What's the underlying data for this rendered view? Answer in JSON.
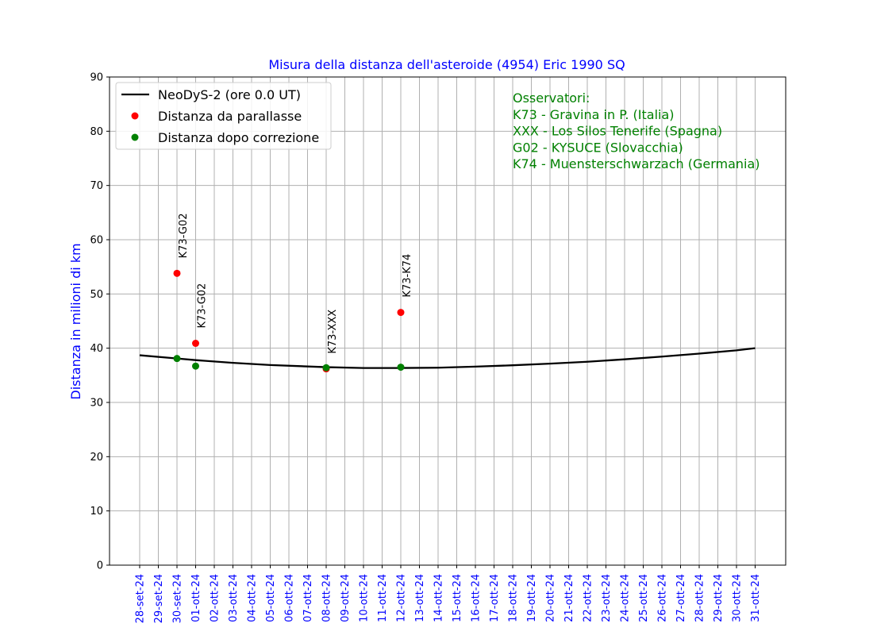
{
  "chart_data": {
    "type": "line",
    "title": "Misura della distanza dell'asteroide  (4954) Eric 1990 SQ",
    "xlabel": "",
    "ylabel": "Distanza in milioni di km",
    "ylim": [
      0,
      90
    ],
    "yticks": [
      "0",
      "10",
      "20",
      "30",
      "40",
      "50",
      "60",
      "70",
      "80",
      "90"
    ],
    "xticks": [
      "28-set-24",
      "29-set-24",
      "30-set-24",
      "01-ott-24",
      "02-ott-24",
      "03-ott-24",
      "04-ott-24",
      "05-ott-24",
      "06-ott-24",
      "07-ott-24",
      "08-ott-24",
      "09-ott-24",
      "10-ott-24",
      "11-ott-24",
      "12-ott-24",
      "13-ott-24",
      "14-ott-24",
      "15-ott-24",
      "16-ott-24",
      "17-ott-24",
      "18-ott-24",
      "19-ott-24",
      "20-ott-24",
      "21-ott-24",
      "22-ott-24",
      "23-ott-24",
      "24-ott-24",
      "25-ott-24",
      "26-ott-24",
      "27-ott-24",
      "28-ott-24",
      "29-ott-24",
      "30-ott-24",
      "31-ott-24"
    ],
    "grid": true,
    "legend_position": "top-left",
    "series": [
      {
        "name": "NeoDyS-2 (ore 0.0  UT)",
        "kind": "line",
        "color": "#000000",
        "points": [
          [
            "28-set-24",
            38.7
          ],
          [
            "30-set-24",
            38.1
          ],
          [
            "01-ott-24",
            37.8
          ],
          [
            "03-ott-24",
            37.3
          ],
          [
            "05-ott-24",
            36.9
          ],
          [
            "08-ott-24",
            36.5
          ],
          [
            "10-ott-24",
            36.35
          ],
          [
            "12-ott-24",
            36.35
          ],
          [
            "14-ott-24",
            36.4
          ],
          [
            "16-ott-24",
            36.6
          ],
          [
            "18-ott-24",
            36.85
          ],
          [
            "20-ott-24",
            37.15
          ],
          [
            "22-ott-24",
            37.5
          ],
          [
            "24-ott-24",
            37.95
          ],
          [
            "26-ott-24",
            38.45
          ],
          [
            "28-ott-24",
            39.0
          ],
          [
            "30-ott-24",
            39.6
          ],
          [
            "31-ott-24",
            40.0
          ]
        ]
      },
      {
        "name": "Distanza da parallasse",
        "kind": "scatter",
        "color": "#ff0000",
        "points": [
          [
            "30-set-24",
            53.8,
            "K73-G02"
          ],
          [
            "01-ott-24",
            40.9,
            "K73-G02"
          ],
          [
            "08-ott-24",
            36.2,
            "K73-XXX"
          ],
          [
            "12-ott-24",
            46.6,
            "K73-K74"
          ]
        ]
      },
      {
        "name": "Distanza dopo correzione",
        "kind": "scatter",
        "color": "#008000",
        "points": [
          [
            "30-set-24",
            38.1
          ],
          [
            "01-ott-24",
            36.7
          ],
          [
            "08-ott-24",
            36.4
          ],
          [
            "12-ott-24",
            36.5
          ]
        ]
      }
    ],
    "annotation": {
      "color": "#008000",
      "lines": [
        "Osservatori:",
        "K73 - Gravina in P. (Italia)",
        "XXX - Los Silos Tenerife (Spagna)",
        "G02 - KYSUCE (Slovacchia)",
        "K74 - Muensterschwarzach (Germania)"
      ]
    },
    "colors": {
      "title": "#0000ff",
      "ylabel": "#0000ff",
      "xticks": "#0000ff",
      "yticks": "#000000",
      "grid": "#b0b0b0"
    }
  }
}
